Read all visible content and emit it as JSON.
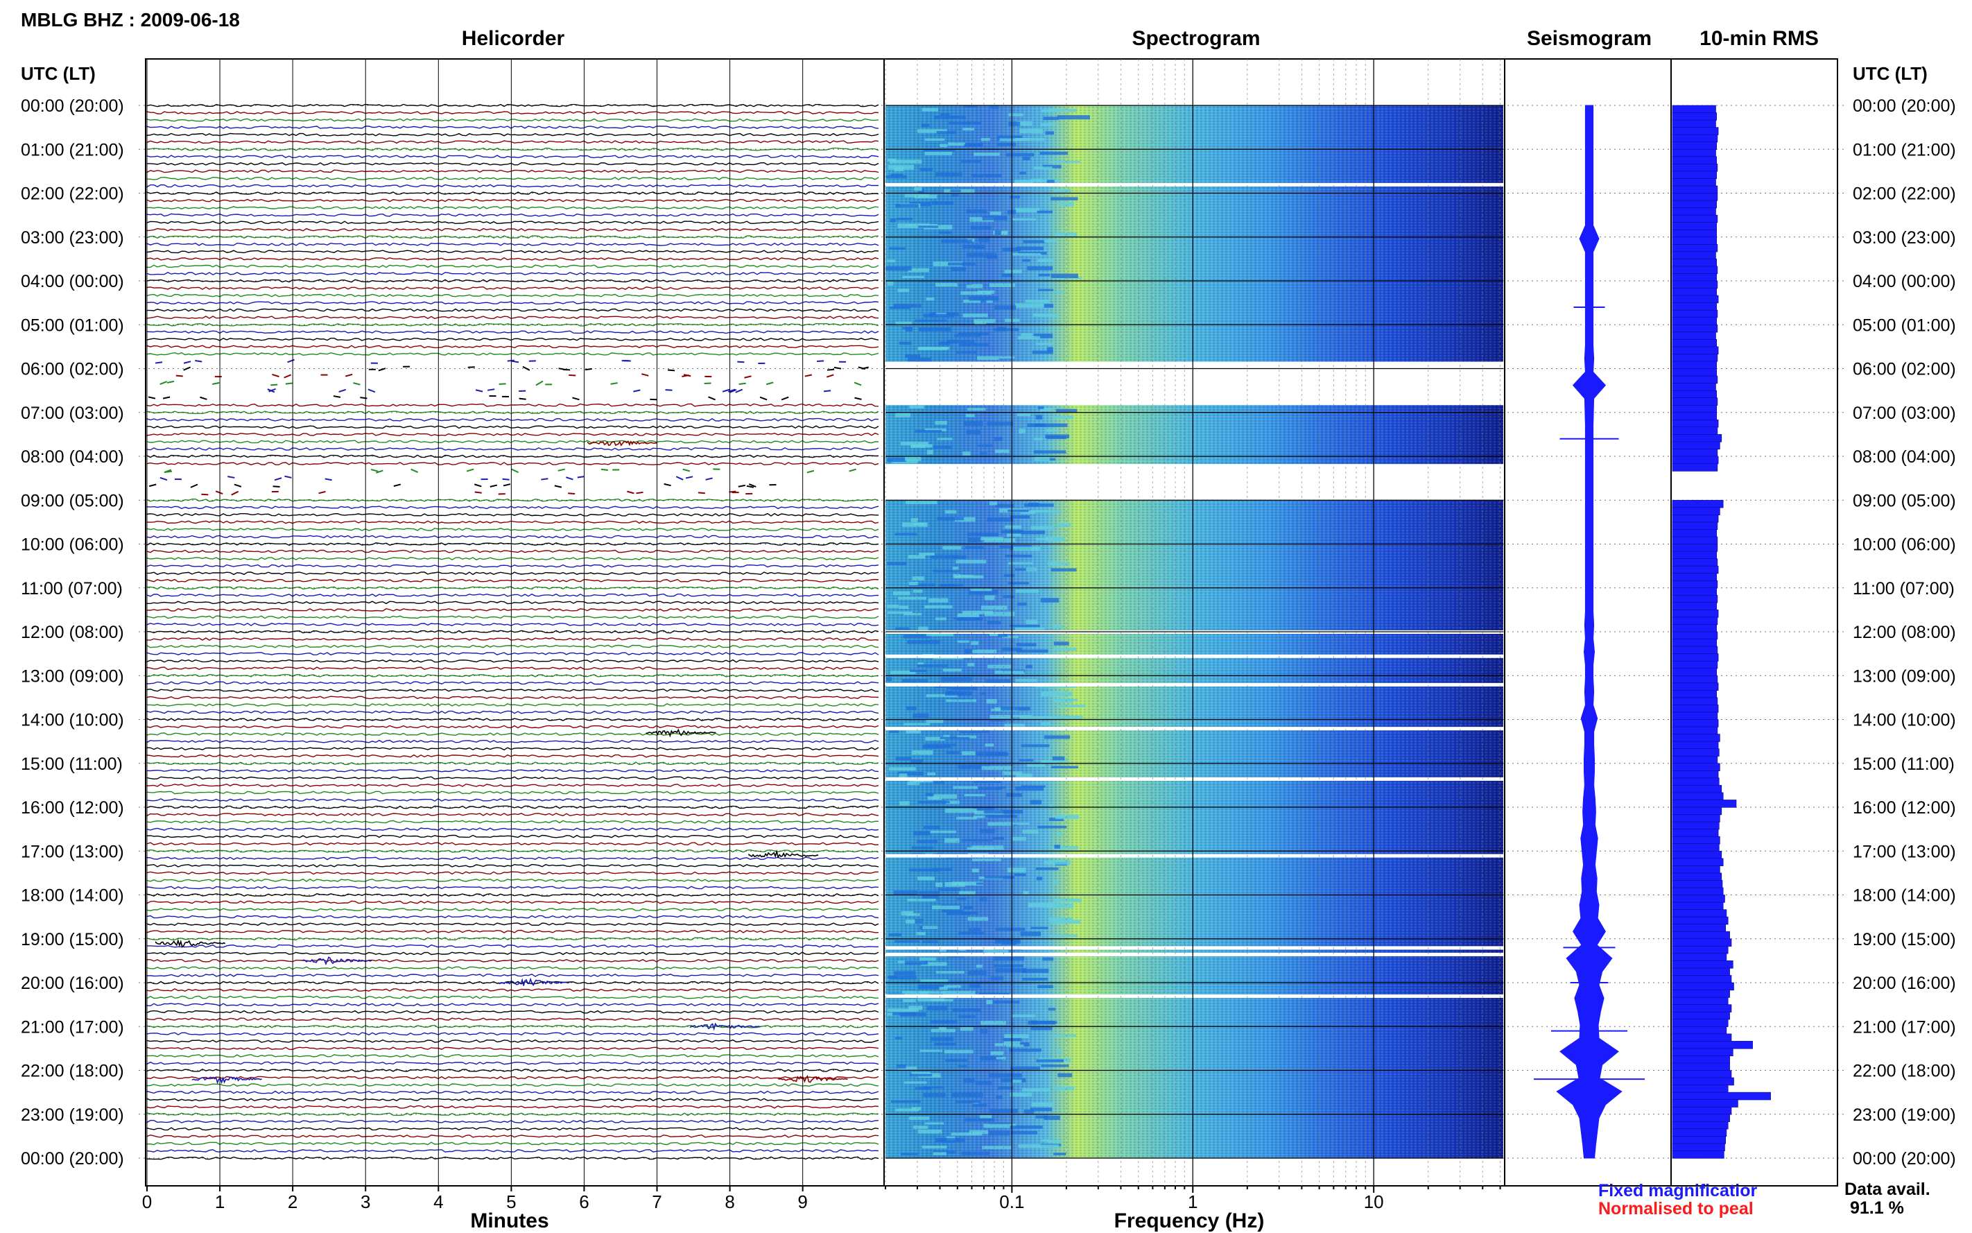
{
  "header": {
    "station_title": "MBLG BHZ : 2009-06-18"
  },
  "panels": {
    "helicorder": "Helicorder",
    "spectrogram": "Spectrogram",
    "seismogram": "Seismogram",
    "rms": "10-min RMS"
  },
  "time_axis": {
    "label": "UTC (LT)",
    "ticks": [
      "00:00 (20:00)",
      "01:00 (21:00)",
      "02:00 (22:00)",
      "03:00 (23:00)",
      "04:00 (00:00)",
      "05:00 (01:00)",
      "06:00 (02:00)",
      "07:00 (03:00)",
      "08:00 (04:00)",
      "09:00 (05:00)",
      "10:00 (06:00)",
      "11:00 (07:00)",
      "12:00 (08:00)",
      "13:00 (09:00)",
      "14:00 (10:00)",
      "15:00 (11:00)",
      "16:00 (12:00)",
      "17:00 (13:00)",
      "18:00 (14:00)",
      "19:00 (15:00)",
      "20:00 (16:00)",
      "21:00 (17:00)",
      "22:00 (18:00)",
      "23:00 (19:00)",
      "00:00 (20:00)"
    ]
  },
  "minutes_axis": {
    "label": "Minutes",
    "ticks": [
      "0",
      "1",
      "2",
      "3",
      "4",
      "5",
      "6",
      "7",
      "8",
      "9"
    ]
  },
  "frequency_axis": {
    "label": "Frequency (Hz)",
    "ticks": [
      "0.1",
      "1",
      "10"
    ],
    "scale": "log"
  },
  "legend": {
    "fixed": "Fixed magnificatior",
    "normalised": "Normalised to peal",
    "fixed_color": "#1a1aff",
    "normalised_color": "#ff1a1a"
  },
  "availability": {
    "label": "Data avail.",
    "value": "91.1 %"
  },
  "colors": {
    "trace_cycle": [
      "#000000",
      "#8b0000",
      "#1f8b1f",
      "#1a1ab4"
    ],
    "rms_fill": "#1a1aff",
    "spectro_low": "#0a1a8c",
    "spectro_mid": "#3fb4e6",
    "spectro_high": "#c8f050"
  },
  "chart_data": {
    "type": "heatmap",
    "traces_per_hour": 6,
    "hours": 24,
    "gaps_hours": [
      [
        5.8,
        6.7
      ],
      [
        8.25,
        9.0
      ]
    ],
    "rms_per_10min": [
      0.53,
      0.54,
      0.53,
      0.56,
      0.55,
      0.54,
      0.53,
      0.54,
      0.55,
      0.54,
      0.53,
      0.55,
      0.55,
      0.54,
      0.53,
      0.55,
      0.54,
      0.54,
      0.54,
      0.55,
      0.53,
      0.54,
      0.55,
      0.54,
      0.55,
      0.54,
      0.56,
      0.54,
      0.55,
      0.54,
      0.55,
      0.53,
      0.54,
      0.56,
      0.55,
      0.54,
      0.54,
      0.55,
      0.53,
      0.54,
      0.55,
      0.54,
      0.54,
      0.56,
      0.55,
      0.6,
      0.58,
      0.55,
      0.56,
      0.55,
      0.0,
      0.0,
      0.0,
      0.0,
      0.62,
      0.58,
      0.56,
      0.55,
      0.54,
      0.55,
      0.55,
      0.54,
      0.55,
      0.56,
      0.54,
      0.55,
      0.54,
      0.55,
      0.54,
      0.56,
      0.55,
      0.54,
      0.55,
      0.54,
      0.55,
      0.56,
      0.55,
      0.54,
      0.55,
      0.56,
      0.54,
      0.55,
      0.56,
      0.55,
      0.56,
      0.55,
      0.58,
      0.56,
      0.57,
      0.55,
      0.58,
      0.56,
      0.57,
      0.6,
      0.62,
      0.78,
      0.6,
      0.58,
      0.57,
      0.56,
      0.58,
      0.57,
      0.6,
      0.62,
      0.58,
      0.6,
      0.61,
      0.62,
      0.64,
      0.62,
      0.66,
      0.68,
      0.65,
      0.7,
      0.72,
      0.68,
      0.66,
      0.74,
      0.7,
      0.72,
      0.75,
      0.7,
      0.68,
      0.72,
      0.7,
      0.68,
      0.66,
      0.72,
      0.98,
      0.74,
      0.7,
      0.7,
      0.72,
      0.75,
      0.68,
      1.2,
      0.8,
      0.72,
      0.7,
      0.68,
      0.66,
      0.65,
      0.64,
      0.63
    ],
    "seismogram_envelope": [
      0.12,
      0.12,
      0.12,
      0.12,
      0.12,
      0.12,
      0.12,
      0.12,
      0.12,
      0.12,
      0.3,
      0.12,
      0.12,
      0.12,
      0.12,
      0.12,
      0.12,
      0.12,
      0.12,
      0.14,
      0.12,
      0.5,
      0.14,
      0.13,
      0.12,
      0.12,
      0.12,
      0.12,
      0.12,
      0.12,
      0.12,
      0.12,
      0.12,
      0.12,
      0.12,
      0.12,
      0.12,
      0.12,
      0.12,
      0.14,
      0.12,
      0.16,
      0.12,
      0.12,
      0.14,
      0.12,
      0.25,
      0.14,
      0.14,
      0.16,
      0.16,
      0.14,
      0.18,
      0.2,
      0.18,
      0.26,
      0.22,
      0.18,
      0.24,
      0.22,
      0.3,
      0.26,
      0.5,
      0.24,
      0.7,
      0.4,
      0.3,
      0.45,
      0.35,
      0.28,
      0.3,
      0.9,
      0.4,
      0.32,
      1.0,
      0.5,
      0.3,
      0.25,
      0.2,
      0.16
    ]
  }
}
